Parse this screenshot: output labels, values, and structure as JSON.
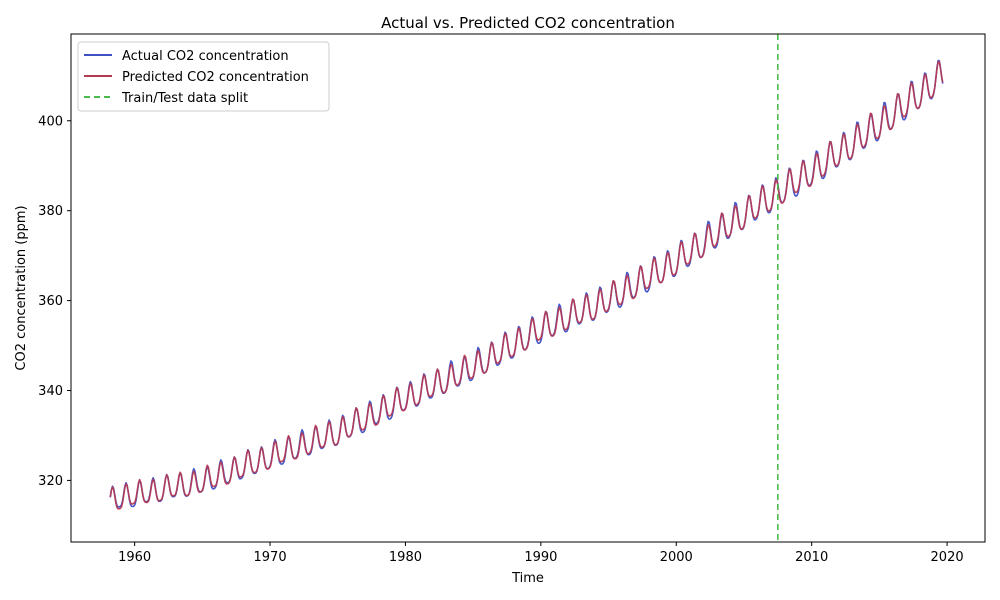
{
  "chart_data": {
    "type": "line",
    "title": "Actual vs. Predicted CO2 concentration",
    "xlabel": "Time",
    "ylabel": "CO2 concentration (ppm)",
    "xlim": [
      1955.3,
      2022.8
    ],
    "ylim": [
      306.3,
      419.3
    ],
    "x_ticks": [
      1960,
      1970,
      1980,
      1990,
      2000,
      2010,
      2020
    ],
    "y_ticks": [
      320,
      340,
      360,
      380,
      400
    ],
    "grid": false,
    "legend_position": "upper-left",
    "split_x": 2007.5,
    "x_range": [
      1958.2,
      2019.75
    ],
    "time_step": 0.0833,
    "trend_points": [
      [
        1958.2,
        315.5
      ],
      [
        1965,
        319.5
      ],
      [
        1970,
        325.0
      ],
      [
        1975,
        330.5
      ],
      [
        1980,
        338.0
      ],
      [
        1985,
        345.0
      ],
      [
        1990,
        353.5
      ],
      [
        1995,
        360.0
      ],
      [
        2000,
        368.5
      ],
      [
        2005,
        379.0
      ],
      [
        2010,
        388.5
      ],
      [
        2015,
        399.0
      ],
      [
        2019.75,
        410.0
      ]
    ],
    "series": [
      {
        "name": "Actual CO2 concentration",
        "color": "#3f4fc4",
        "seasonal_amplitude_points": [
          [
            1958,
            2.6
          ],
          [
            1990,
            3.2
          ],
          [
            2019.75,
            3.6
          ]
        ],
        "peak_phase": 0.37
      },
      {
        "name": "Predicted CO2 concentration",
        "color": "#b53a55",
        "seasonal_amplitude_points": [
          [
            1958,
            2.5
          ],
          [
            1990,
            2.9
          ],
          [
            2019.75,
            3.3
          ]
        ],
        "peak_phase": 0.37
      }
    ],
    "split_line": {
      "name": "Train/Test data split",
      "color": "#4cba4c"
    }
  }
}
